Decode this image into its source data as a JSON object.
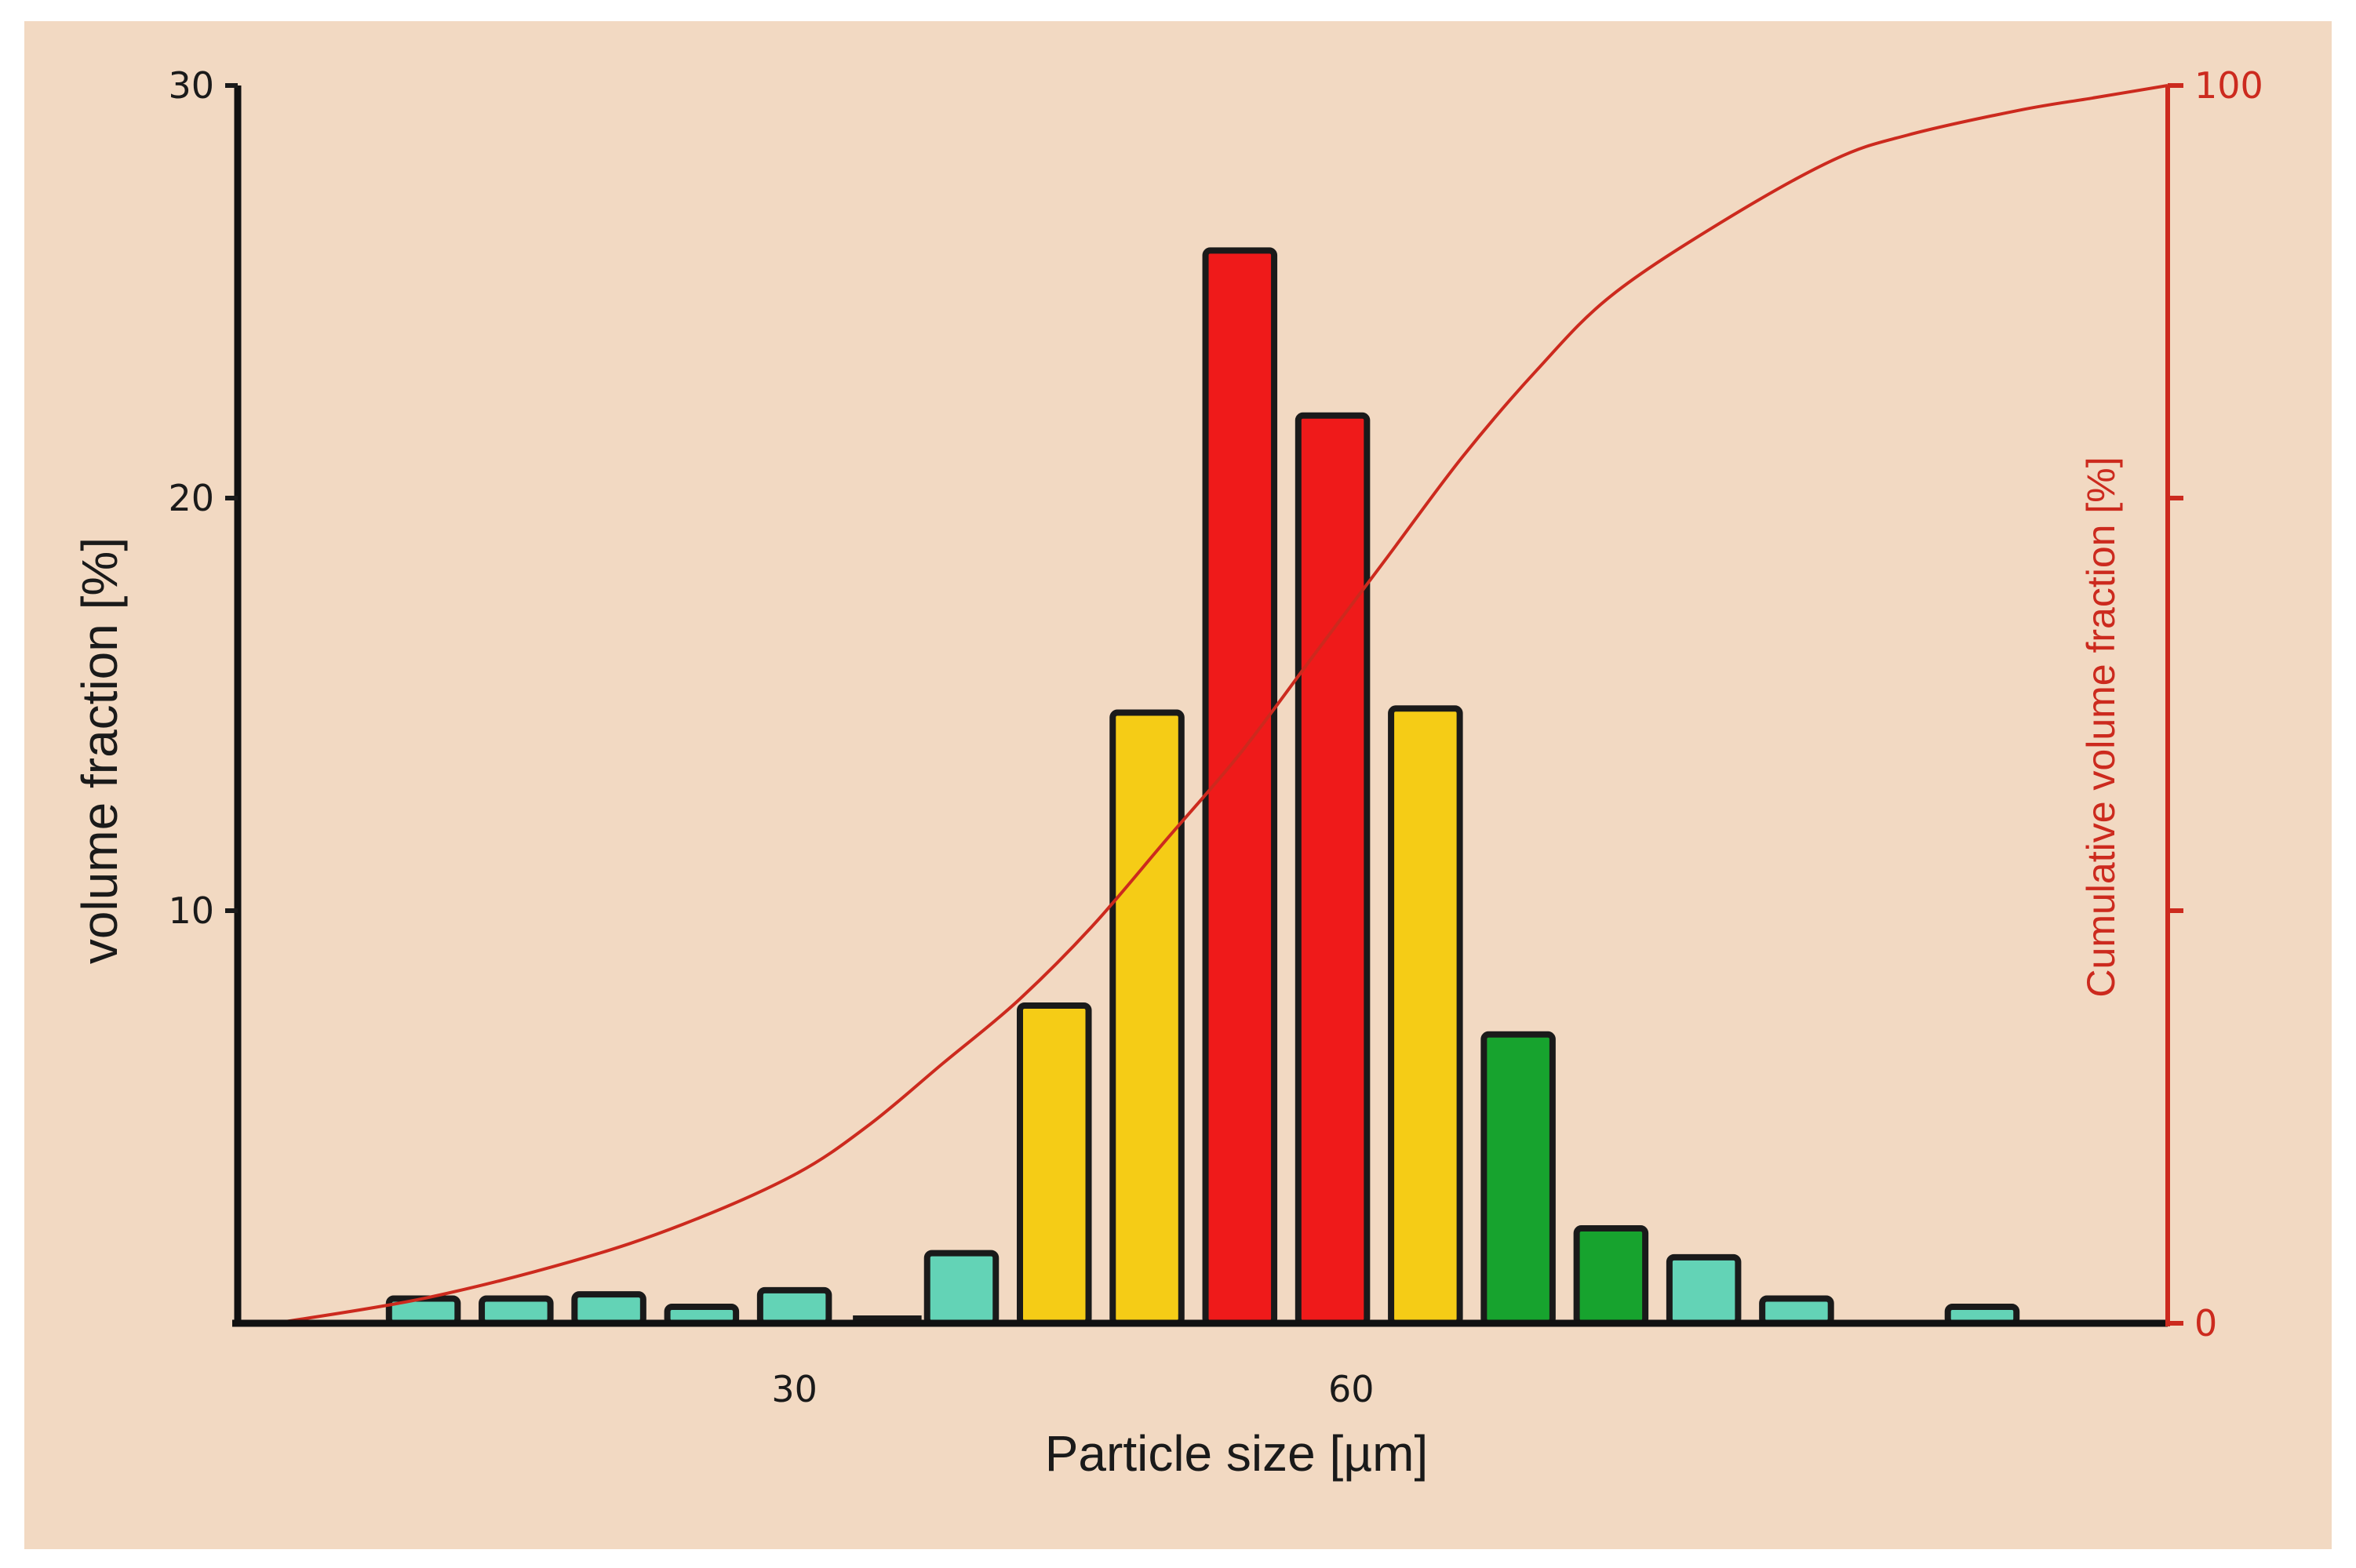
{
  "chart_data": {
    "type": "bar",
    "xlabel": "Particle size [µm]",
    "ylabel": "volume fraction [%]",
    "y2label": "Cumulative volume fraction [%]",
    "ylim": [
      0,
      30
    ],
    "y2lim": [
      0,
      100
    ],
    "yticks": [
      10,
      20,
      30
    ],
    "y2ticks": [
      "0",
      "100"
    ],
    "xticks": [
      {
        "value": 30,
        "label": "30"
      },
      {
        "value": 60,
        "label": "60"
      }
    ],
    "grid": false,
    "colors": {
      "background": "#f2d9c2",
      "turquoise": "#63d3b6",
      "yellow": "#f5cc16",
      "red": "#ef1a1a",
      "green": "#17a32e",
      "dark": "#1a1a1a",
      "curve": "#cc2a1e"
    },
    "series": [
      {
        "kind": "bar",
        "x": [
          5,
          10,
          15,
          20,
          25,
          30,
          35,
          39,
          44,
          49,
          54,
          59,
          64,
          69,
          74,
          79,
          84,
          89,
          94
        ],
        "values": [
          0,
          0.6,
          0.6,
          0.7,
          0.4,
          0.8,
          0.2,
          1.7,
          7.7,
          14.8,
          26,
          22,
          14.9,
          7,
          2.3,
          1.6,
          0.6,
          0,
          0.4
        ],
        "bar_colors": [
          "none",
          "turquoise",
          "turquoise",
          "turquoise",
          "turquoise",
          "turquoise",
          "dark",
          "turquoise",
          "yellow",
          "yellow",
          "red",
          "red",
          "yellow",
          "green",
          "green",
          "turquoise",
          "turquoise",
          "none",
          "turquoise"
        ]
      },
      {
        "kind": "line",
        "axis": "right",
        "x": [
          2,
          10,
          18,
          24,
          30,
          34,
          38,
          42,
          46,
          50,
          54,
          58,
          62,
          66,
          70,
          74,
          80,
          86,
          90,
          96,
          100,
          104
        ],
        "values": [
          0,
          2,
          5,
          8,
          12,
          16,
          21,
          26,
          32,
          39,
          46,
          54,
          62,
          70,
          77,
          83,
          89,
          94,
          96,
          98,
          99,
          100
        ]
      }
    ]
  }
}
